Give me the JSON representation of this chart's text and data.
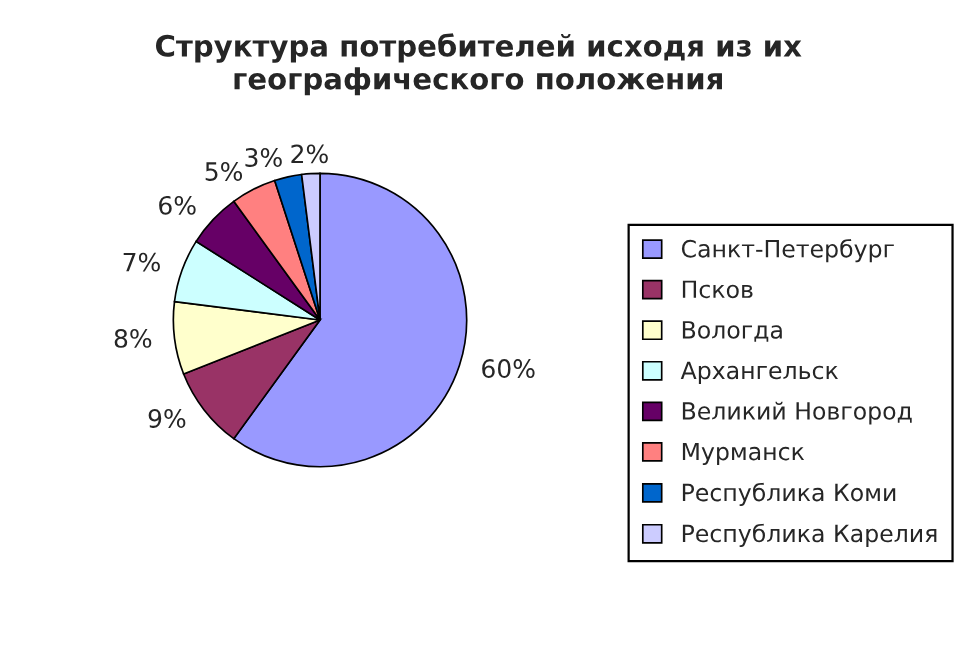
{
  "chart_data": {
    "type": "pie",
    "title": "Структура потребителей исходя из их\nгеографического положения",
    "categories": [
      "Санкт-Петербург",
      "Псков",
      "Вологда",
      "Архангельск",
      "Великий Новгород",
      "Мурманск",
      "Республика Коми",
      "Республика Карелия"
    ],
    "values": [
      60,
      9,
      8,
      7,
      6,
      5,
      3,
      2
    ],
    "value_labels": [
      "60%",
      "9%",
      "8%",
      "7%",
      "6%",
      "5%",
      "3%",
      "2%"
    ],
    "colors": [
      "#9999ff",
      "#993366",
      "#ffffcc",
      "#ccffff",
      "#660066",
      "#ff8080",
      "#0066cc",
      "#ccccff"
    ],
    "legend": "right"
  }
}
